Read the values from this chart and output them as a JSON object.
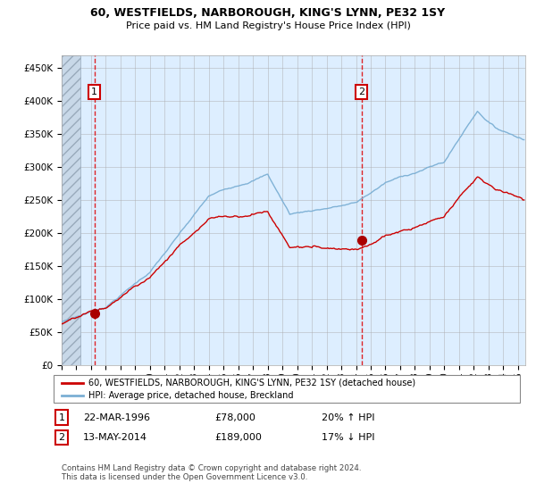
{
  "title1": "60, WESTFIELDS, NARBOROUGH, KING'S LYNN, PE32 1SY",
  "title2": "Price paid vs. HM Land Registry's House Price Index (HPI)",
  "legend_line1": "60, WESTFIELDS, NARBOROUGH, KING'S LYNN, PE32 1SY (detached house)",
  "legend_line2": "HPI: Average price, detached house, Breckland",
  "annotation1_date": "22-MAR-1996",
  "annotation1_price": "£78,000",
  "annotation1_hpi": "20% ↑ HPI",
  "annotation2_date": "13-MAY-2014",
  "annotation2_price": "£189,000",
  "annotation2_hpi": "17% ↓ HPI",
  "footer": "Contains HM Land Registry data © Crown copyright and database right 2024.\nThis data is licensed under the Open Government Licence v3.0.",
  "sale1_x": 1996.23,
  "sale1_y": 78000,
  "sale2_x": 2014.37,
  "sale2_y": 189000,
  "hpi_color": "#7bafd4",
  "price_color": "#cc0000",
  "sale_dot_color": "#aa0000",
  "background_color": "#ddeeff",
  "hatch_color": "#bbccdd",
  "vline_color": "#dd0000",
  "ylim": [
    0,
    470000
  ],
  "xlim": [
    1994.0,
    2025.5
  ],
  "hatch_xlim_end": 1995.3
}
